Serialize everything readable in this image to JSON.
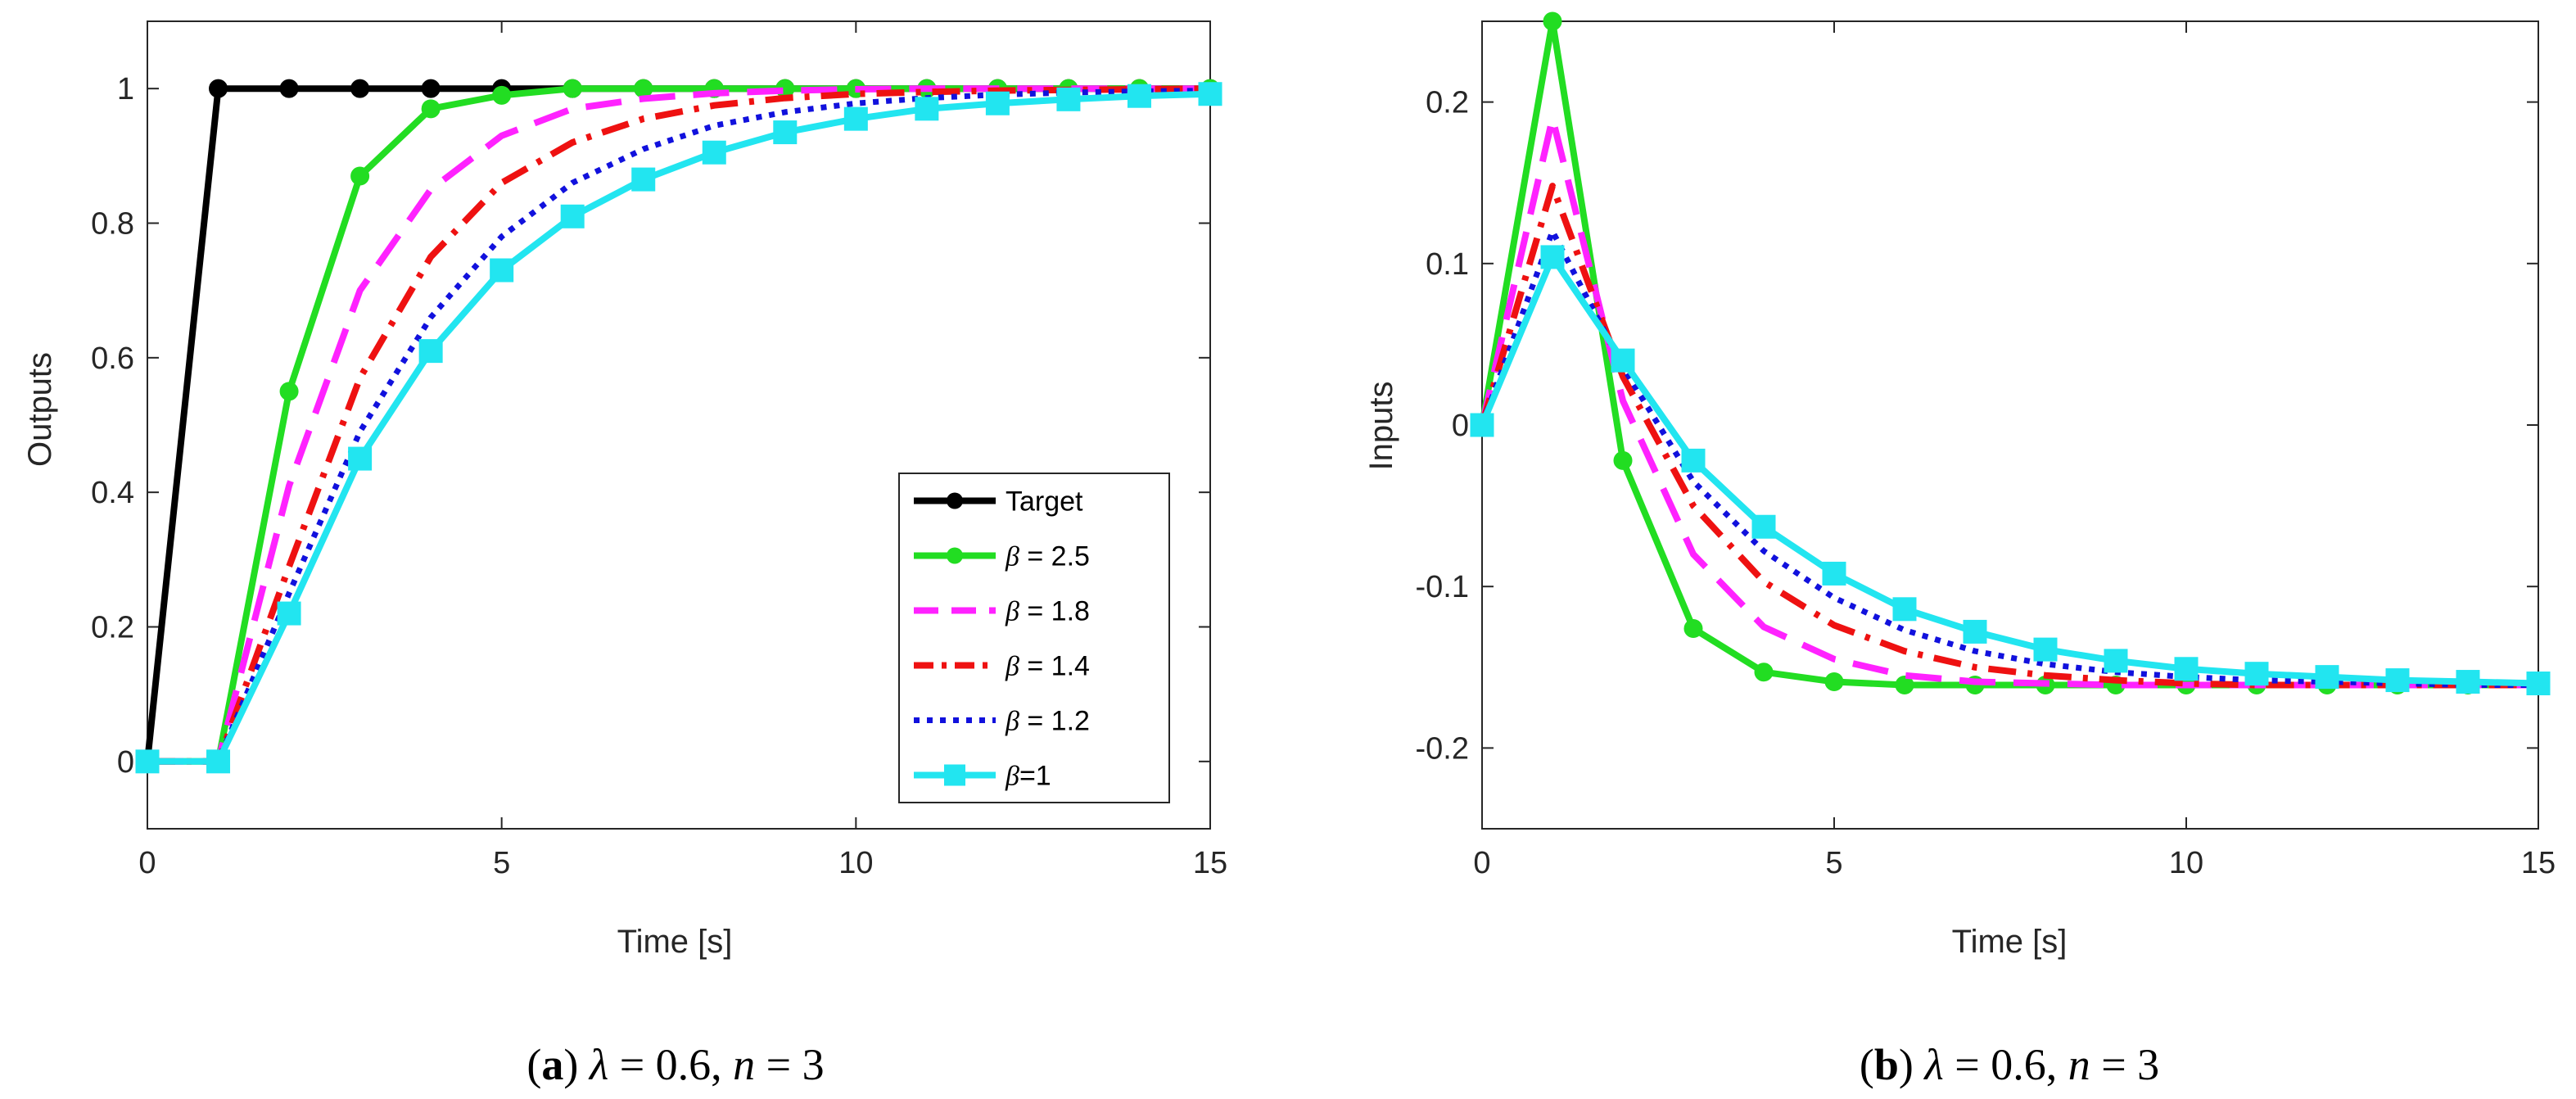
{
  "chart_data": [
    {
      "type": "line",
      "id": "a",
      "xlabel": "Time [s]",
      "ylabel": "Outputs",
      "xlim": [
        0,
        15
      ],
      "ylim": [
        -0.1,
        1.1
      ],
      "xticks": [
        0,
        5,
        10,
        15
      ],
      "xtick_labels": [
        "0",
        "5",
        "10",
        "15"
      ],
      "yticks": [
        0,
        0.2,
        0.4,
        0.6,
        0.8,
        1
      ],
      "ytick_labels": [
        "0",
        "0.2",
        "0.4",
        "0.6",
        "0.8",
        "1"
      ],
      "grid": false,
      "legend_position": "bottom-right",
      "caption": {
        "letter": "a",
        "lambda_sym": "λ",
        "lambda_val": " = 0.6, ",
        "n_sym": "n",
        "n_val": " = 3"
      },
      "x": [
        0,
        1,
        2,
        3,
        4,
        5,
        6,
        7,
        8,
        9,
        10,
        11,
        12,
        13,
        14,
        15
      ],
      "series": [
        {
          "name": "Target",
          "legend_text": "Target",
          "color": "#000000",
          "style": "solid",
          "marker": "circle",
          "values": [
            0,
            1,
            1,
            1,
            1,
            1,
            1,
            1,
            1,
            1,
            1,
            1,
            1,
            1,
            1,
            1
          ]
        },
        {
          "name": "β = 2.5",
          "legend_sym": "β",
          "legend_text": " = 2.5",
          "color": "#22dd22",
          "style": "solid",
          "marker": "circle",
          "values": [
            0,
            0,
            0.55,
            0.87,
            0.97,
            0.99,
            1,
            1,
            1,
            1,
            1,
            1,
            1,
            1,
            1,
            1
          ]
        },
        {
          "name": "β = 1.8",
          "legend_sym": "β",
          "legend_text": " = 1.8",
          "color": "#ff22ff",
          "style": "dash",
          "marker": "none",
          "values": [
            0,
            0,
            0.41,
            0.7,
            0.85,
            0.93,
            0.97,
            0.985,
            0.993,
            0.997,
            0.999,
            1,
            1,
            1,
            1,
            1
          ]
        },
        {
          "name": "β = 1.4",
          "legend_sym": "β",
          "legend_text": " = 1.4",
          "color": "#ee1111",
          "style": "dashdot",
          "marker": "none",
          "values": [
            0,
            0,
            0.29,
            0.57,
            0.75,
            0.86,
            0.92,
            0.955,
            0.975,
            0.986,
            0.992,
            0.995,
            0.997,
            0.998,
            0.999,
            1
          ]
        },
        {
          "name": "β = 1.2",
          "legend_sym": "β",
          "legend_text": " = 1.2",
          "color": "#1111dd",
          "style": "dot",
          "marker": "none",
          "values": [
            0,
            0,
            0.25,
            0.49,
            0.66,
            0.78,
            0.86,
            0.91,
            0.945,
            0.965,
            0.978,
            0.986,
            0.991,
            0.994,
            0.996,
            0.997
          ]
        },
        {
          "name": "β=1",
          "legend_sym": "β",
          "legend_text": "=1",
          "color": "#22e5f0",
          "style": "solid",
          "marker": "square",
          "values": [
            0,
            0,
            0.22,
            0.45,
            0.61,
            0.73,
            0.81,
            0.865,
            0.905,
            0.935,
            0.955,
            0.97,
            0.978,
            0.984,
            0.989,
            0.992
          ]
        }
      ]
    },
    {
      "type": "line",
      "id": "b",
      "xlabel": "Time [s]",
      "ylabel": "Inputs",
      "xlim": [
        0,
        15
      ],
      "ylim": [
        -0.25,
        0.25
      ],
      "xticks": [
        0,
        5,
        10,
        15
      ],
      "xtick_labels": [
        "0",
        "5",
        "10",
        "15"
      ],
      "yticks": [
        -0.2,
        -0.1,
        0,
        0.1,
        0.2
      ],
      "ytick_labels": [
        "-0.2",
        "-0.1",
        "0",
        "0.1",
        "0.2"
      ],
      "grid": false,
      "caption": {
        "letter": "b",
        "lambda_sym": "λ",
        "lambda_val": " = 0.6, ",
        "n_sym": "n",
        "n_val": " = 3"
      },
      "x": [
        0,
        1,
        2,
        3,
        4,
        5,
        6,
        7,
        8,
        9,
        10,
        11,
        12,
        13,
        14,
        15
      ],
      "series": [
        {
          "name": "β = 2.5",
          "color": "#22dd22",
          "style": "solid",
          "marker": "circle",
          "values": [
            0,
            0.25,
            -0.022,
            -0.126,
            -0.153,
            -0.159,
            -0.161,
            -0.161,
            -0.161,
            -0.161,
            -0.161,
            -0.161,
            -0.161,
            -0.161,
            -0.161,
            -0.161
          ]
        },
        {
          "name": "β = 1.8",
          "color": "#ff22ff",
          "style": "dash",
          "marker": "none",
          "values": [
            0,
            0.19,
            0.015,
            -0.08,
            -0.125,
            -0.145,
            -0.155,
            -0.159,
            -0.16,
            -0.161,
            -0.161,
            -0.161,
            -0.161,
            -0.161,
            -0.161,
            -0.161
          ]
        },
        {
          "name": "β = 1.4",
          "color": "#ee1111",
          "style": "dashdot",
          "marker": "none",
          "values": [
            0,
            0.148,
            0.03,
            -0.05,
            -0.097,
            -0.124,
            -0.14,
            -0.15,
            -0.155,
            -0.158,
            -0.16,
            -0.161,
            -0.161,
            -0.161,
            -0.161,
            -0.161
          ]
        },
        {
          "name": "β = 1.2",
          "color": "#1111dd",
          "style": "dot",
          "marker": "none",
          "values": [
            0,
            0.12,
            0.036,
            -0.035,
            -0.078,
            -0.107,
            -0.127,
            -0.14,
            -0.148,
            -0.153,
            -0.156,
            -0.158,
            -0.159,
            -0.16,
            -0.161,
            -0.161
          ]
        },
        {
          "name": "β=1",
          "color": "#22e5f0",
          "style": "solid",
          "marker": "square",
          "values": [
            0,
            0.104,
            0.04,
            -0.022,
            -0.063,
            -0.092,
            -0.114,
            -0.128,
            -0.139,
            -0.146,
            -0.151,
            -0.154,
            -0.156,
            -0.158,
            -0.159,
            -0.16
          ]
        }
      ]
    }
  ]
}
